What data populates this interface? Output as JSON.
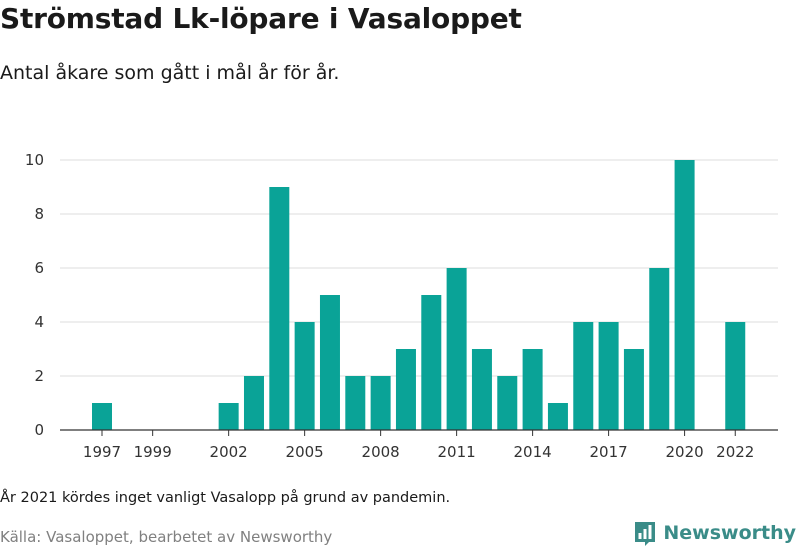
{
  "header": {
    "title": "Strömstad Lk-löpare i Vasaloppet",
    "subtitle": "Antal åkare som gått i mål år för år."
  },
  "footer": {
    "note": "År 2021 kördes inget vanligt Vasalopp på grund av pandemin.",
    "source": "Källa: Vasaloppet, bearbetet av Newsworthy",
    "brand_name": "Newsworthy",
    "brand_icon": "newsworthy-logo-icon",
    "brand_color": "#3a8c88"
  },
  "chart_data": {
    "type": "bar",
    "title": "Strömstad Lk-löpare i Vasaloppet",
    "subtitle": "Antal åkare som gått i mål år för år.",
    "xlabel": "",
    "ylabel": "",
    "categories": [
      1997,
      1998,
      1999,
      2000,
      2001,
      2002,
      2003,
      2004,
      2005,
      2006,
      2007,
      2008,
      2009,
      2010,
      2011,
      2012,
      2013,
      2014,
      2015,
      2016,
      2017,
      2018,
      2019,
      2020,
      2021,
      2022
    ],
    "values": [
      1,
      0,
      0,
      0,
      0,
      1,
      2,
      9,
      4,
      5,
      2,
      2,
      3,
      5,
      6,
      3,
      2,
      3,
      1,
      4,
      4,
      3,
      6,
      10,
      0,
      4
    ],
    "x_tick_labels": [
      1997,
      1999,
      2002,
      2005,
      2008,
      2011,
      2014,
      2017,
      2020,
      2022
    ],
    "y_ticks": [
      0,
      2,
      4,
      6,
      8,
      10
    ],
    "ylim": [
      0,
      10
    ],
    "grid": true,
    "legend": "none",
    "bar_color": "#0aa397",
    "grid_color": "#dcdcdc",
    "axis_color": "#333333"
  }
}
